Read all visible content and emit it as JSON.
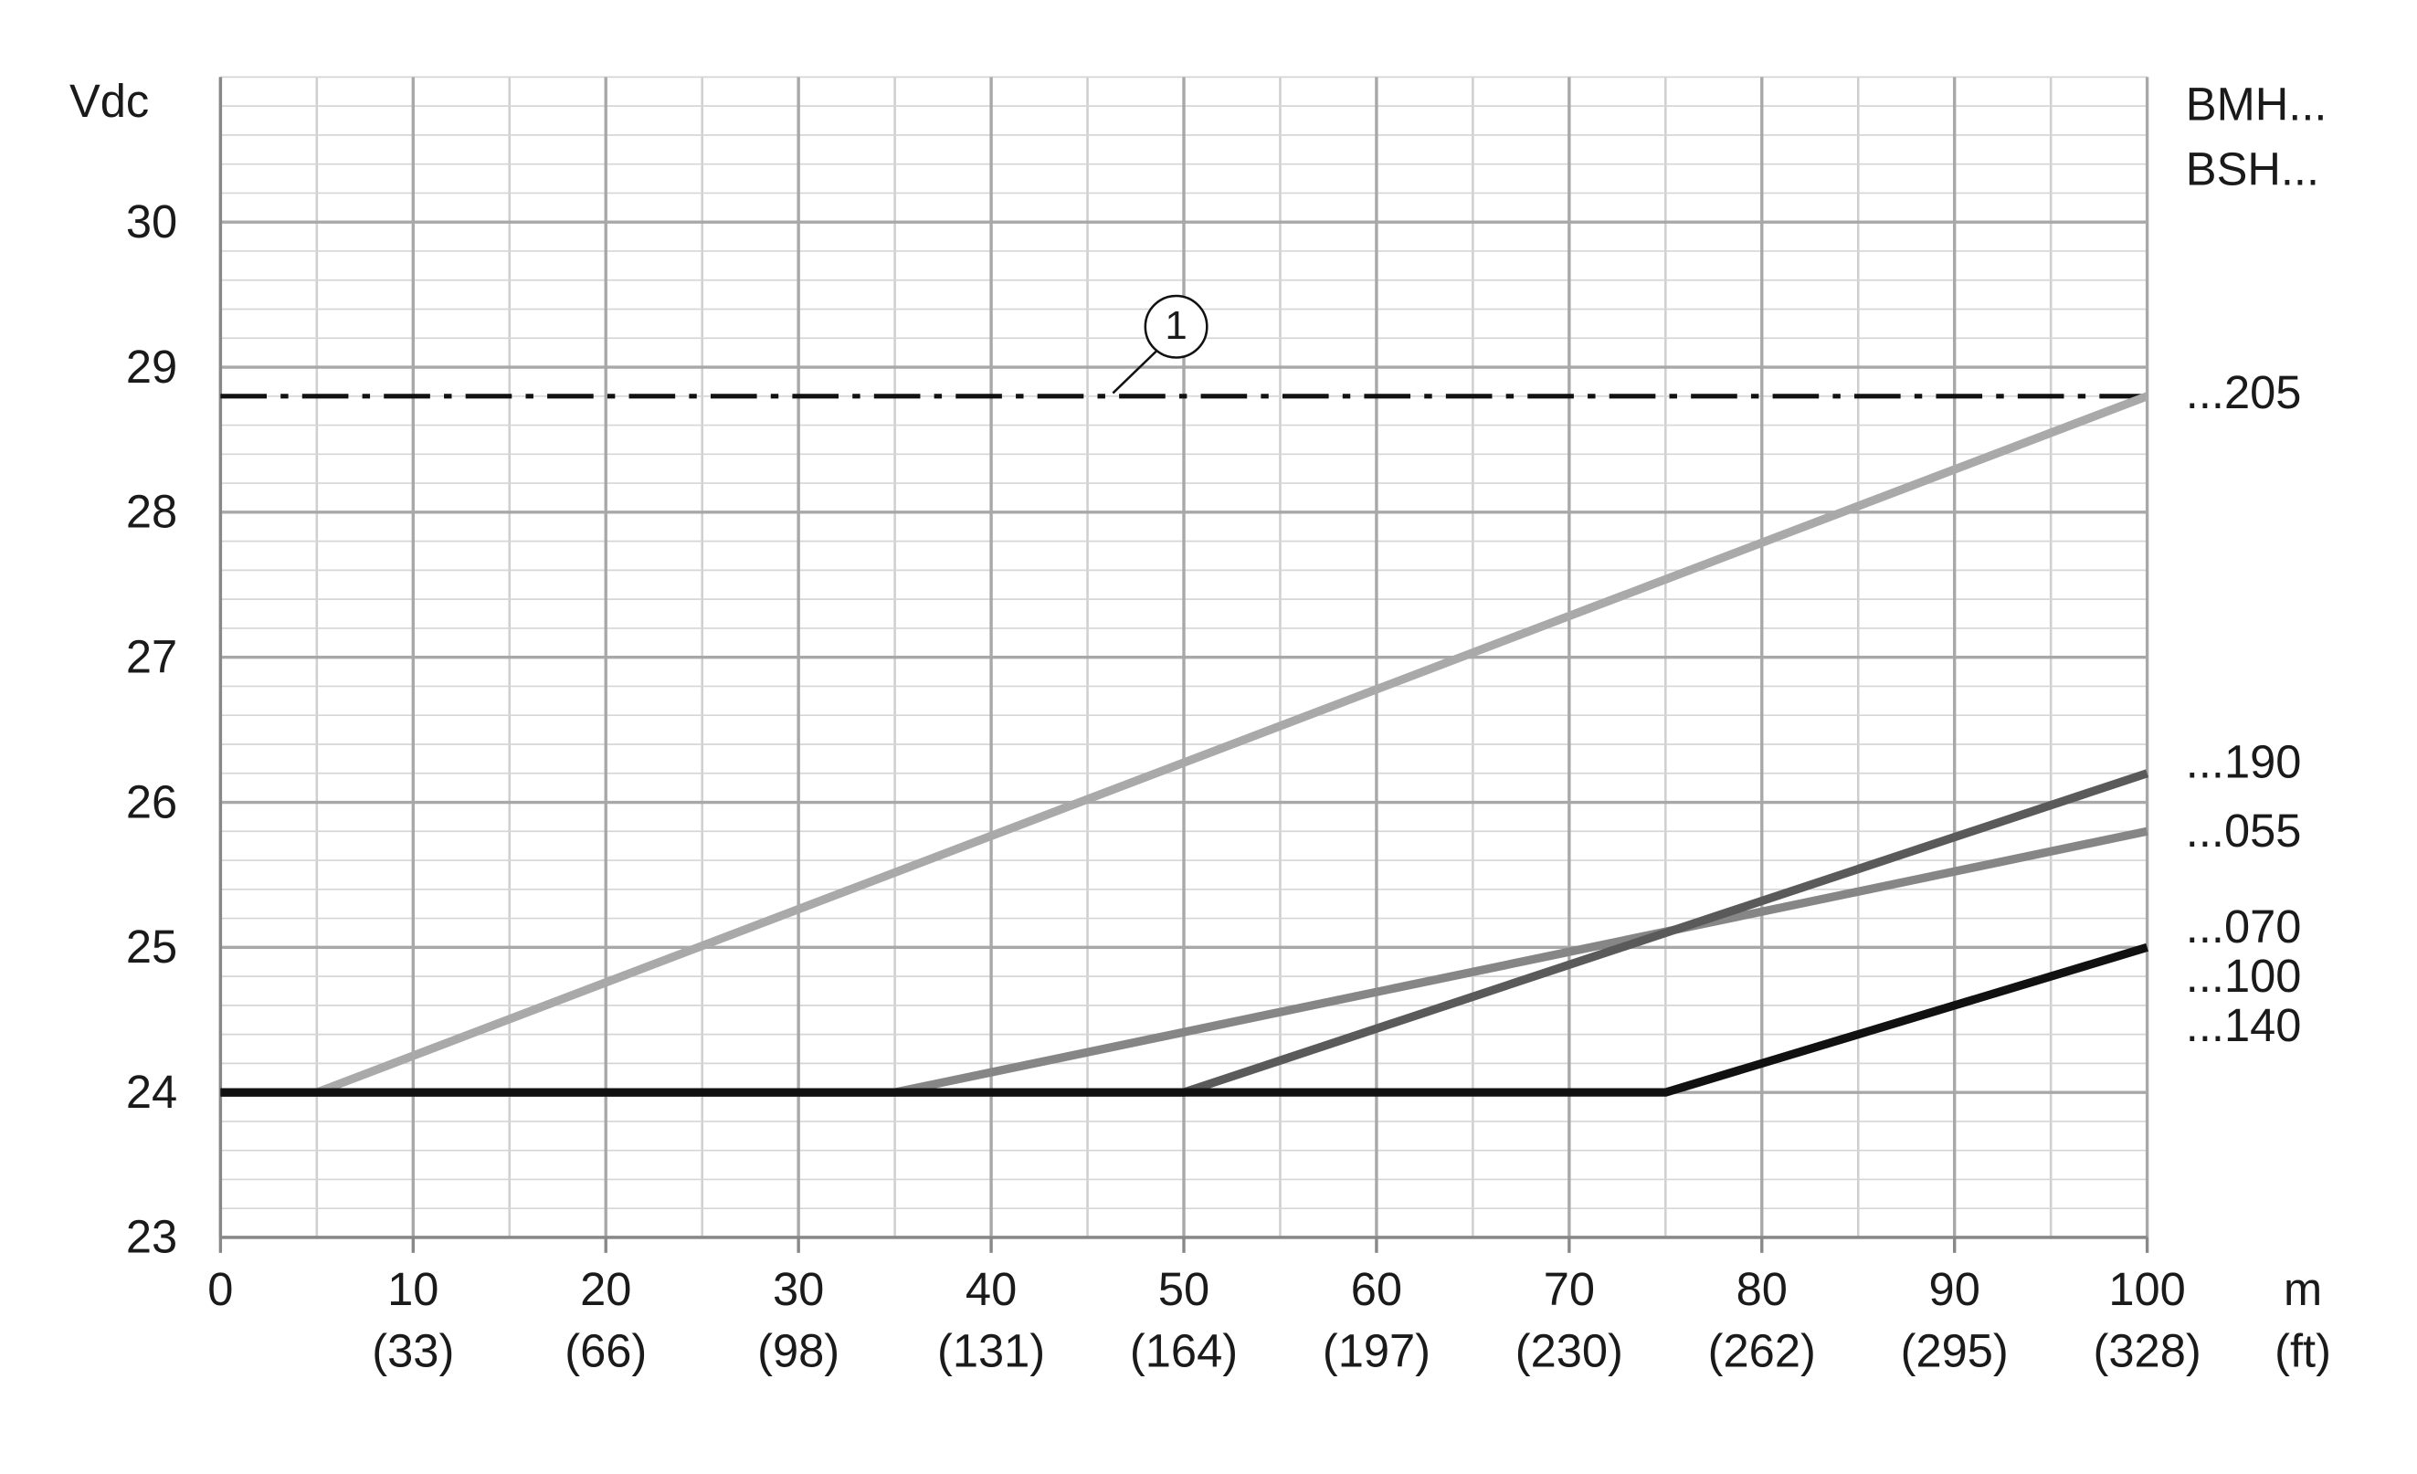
{
  "chart_data": {
    "type": "line",
    "y_label": "Vdc",
    "x_unit": "m",
    "x_unit_secondary": "(ft)",
    "right_header": [
      "BMH...",
      "BSH..."
    ],
    "xlim": [
      0,
      100
    ],
    "ylim": [
      23,
      31
    ],
    "xticks": [
      0,
      10,
      20,
      30,
      40,
      50,
      60,
      70,
      80,
      90,
      100
    ],
    "xticks_secondary": [
      null,
      "(33)",
      "(66)",
      "(98)",
      "(131)",
      "(164)",
      "(197)",
      "(230)",
      "(262)",
      "(295)",
      "(328)"
    ],
    "yticks": [
      23,
      24,
      25,
      26,
      27,
      28,
      29,
      30
    ],
    "minor_grid": {
      "x": 5,
      "y": 0.2
    },
    "grid": true,
    "limit": {
      "value": 28.8,
      "label": "1",
      "color": "#111111"
    },
    "series": [
      {
        "name": "...205",
        "color": "#a9a9a9",
        "x": [
          0,
          5,
          100
        ],
        "values": [
          24,
          24,
          28.8
        ]
      },
      {
        "name": "...055",
        "color": "#868686",
        "x": [
          0,
          35,
          100
        ],
        "values": [
          24,
          24,
          25.8
        ]
      },
      {
        "name": "...190",
        "color": "#5a5a5a",
        "x": [
          0,
          50,
          100
        ],
        "values": [
          24,
          24,
          26.2
        ]
      },
      {
        "name": [
          "...070",
          "...100",
          "...140"
        ],
        "color": "#111111",
        "x": [
          0,
          75,
          100
        ],
        "values": [
          24,
          24,
          25
        ]
      }
    ]
  }
}
